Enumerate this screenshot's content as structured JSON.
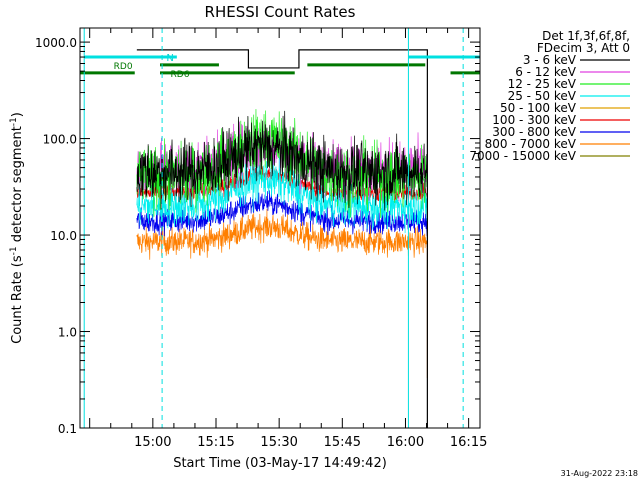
{
  "chart_data": {
    "type": "line",
    "title": "RHESSI Count Rates",
    "xlabel": "Start Time (03-May-17 14:49:42)",
    "ylabel_main": "Count Rate (s",
    "ylabel_sup": "-1",
    "ylabel_tail": " detector segment",
    "ylabel_sup2": "-1",
    "ylabel_end": ")",
    "yscale": "log",
    "ylim": [
      0.1,
      1400
    ],
    "xlim_minutes": [
      -7,
      88
    ],
    "x_tick_values": [
      10.3,
      25.3,
      40.3,
      55.3,
      70.3,
      85.3
    ],
    "x_tick_labels": [
      "15:00",
      "15:15",
      "15:30",
      "15:45",
      "16:00",
      "16:15"
    ],
    "y_tick_values": [
      0.1,
      1,
      10,
      100,
      1000
    ],
    "y_tick_labels": [
      "0.1",
      "1.0",
      "10.0",
      "100.0",
      "1000.0"
    ],
    "legend_placement": "right",
    "legend_header": [
      "Det 1f,3f,6f,8f,",
      "FDecim 3, Att 0"
    ],
    "series": [
      {
        "name": "3 - 6 keV",
        "color": "#000000",
        "base": 45,
        "peak": 1.8,
        "noise": 0.45
      },
      {
        "name": "6 - 12 keV",
        "color": "#e040e0",
        "base": 48,
        "peak": 1.8,
        "noise": 0.4
      },
      {
        "name": "12 - 25 keV",
        "color": "#22ee22",
        "base": 40,
        "peak": 2.4,
        "noise": 0.45
      },
      {
        "name": "25 - 50 keV",
        "color": "#00eeee",
        "base": 20,
        "peak": 1.9,
        "noise": 0.3
      },
      {
        "name": "50 - 100 keV",
        "color": "#e0a000",
        "base": 0,
        "peak": 1,
        "noise": 0
      },
      {
        "name": "100 - 300 keV",
        "color": "#ee0000",
        "base": 27,
        "peak": 1.6,
        "noise": 0.12
      },
      {
        "name": "300 - 800 keV",
        "color": "#0000ee",
        "base": 14,
        "peak": 1.55,
        "noise": 0.18
      },
      {
        "name": "800 - 7000 keV",
        "color": "#ff7f00",
        "base": 8.5,
        "peak": 1.45,
        "noise": 0.2
      },
      {
        "name": "7000 - 15000 keV",
        "color": "#808000",
        "base": 0,
        "peak": 1,
        "noise": 0
      }
    ],
    "data_time_range_minutes": [
      6.5,
      89.5
    ],
    "flare_center_minutes": 37,
    "flare_width_minutes": 9,
    "attenuator_state_label": "N",
    "attenuator_upper_level": 830,
    "attenuator_lower_level": 540,
    "attenuator_dip_minutes": [
      33,
      45
    ],
    "cyan_flag_level": 700,
    "cyan_flag_segments": [
      [
        -6,
        16
      ],
      [
        71,
        88
      ]
    ],
    "green_flag_labels": [
      "RD0",
      "RD6"
    ],
    "green_flag_upper_level": 580,
    "green_flag_lower_level": 480,
    "green_flag_upper_segments": [
      [
        12,
        26
      ],
      [
        47,
        75
      ]
    ],
    "green_flag_lower_segments": [
      [
        -7,
        6
      ],
      [
        12,
        44
      ],
      [
        81,
        88
      ]
    ],
    "vertical_markers_solid_minutes": [
      -6,
      71
    ],
    "vertical_markers_dashed_minutes": [
      12.5,
      84
    ],
    "final_drop_minutes": 75.5,
    "timestamp": "31-Aug-2022 23:18"
  }
}
